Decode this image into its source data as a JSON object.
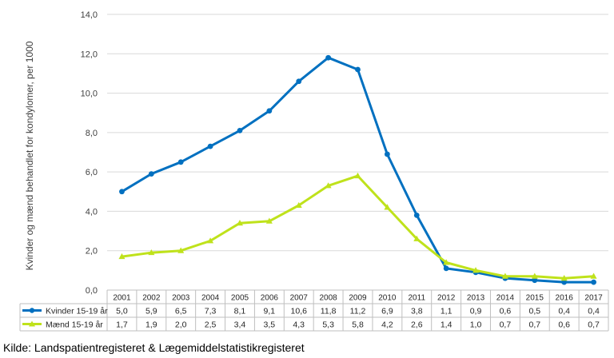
{
  "chart_data": {
    "type": "line",
    "title": "",
    "xlabel": "",
    "ylabel": "Kvinder og mænd behandlet for kondylomer, per 1000",
    "ylim": [
      0,
      14
    ],
    "yticks": [
      "0,0",
      "2,0",
      "4,0",
      "6,0",
      "8,0",
      "10,0",
      "12,0",
      "14,0"
    ],
    "grid": true,
    "legend": "data table below chart",
    "categories": [
      "2001",
      "2002",
      "2003",
      "2004",
      "2005",
      "2006",
      "2007",
      "2008",
      "2009",
      "2010",
      "2011",
      "2012",
      "2013",
      "2014",
      "2015",
      "2016",
      "2017"
    ],
    "series": [
      {
        "name": "Kvinder 15-19 år",
        "color": "#0070C0",
        "marker": "circle",
        "values": [
          5.0,
          5.9,
          6.5,
          7.3,
          8.1,
          9.1,
          10.6,
          11.8,
          11.2,
          6.9,
          3.8,
          1.1,
          0.9,
          0.6,
          0.5,
          0.4,
          0.4
        ],
        "labels": [
          "5,0",
          "5,9",
          "6,5",
          "7,3",
          "8,1",
          "9,1",
          "10,6",
          "11,8",
          "11,2",
          "6,9",
          "3,8",
          "1,1",
          "0,9",
          "0,6",
          "0,5",
          "0,4",
          "0,4"
        ]
      },
      {
        "name": "Mænd 15-19 år",
        "color": "#BFE21B",
        "marker": "triangle",
        "values": [
          1.7,
          1.9,
          2.0,
          2.5,
          3.4,
          3.5,
          4.3,
          5.3,
          5.8,
          4.2,
          2.6,
          1.4,
          1.0,
          0.7,
          0.7,
          0.6,
          0.7
        ],
        "labels": [
          "1,7",
          "1,9",
          "2,0",
          "2,5",
          "3,4",
          "3,5",
          "4,3",
          "5,3",
          "5,8",
          "4,2",
          "2,6",
          "1,4",
          "1,0",
          "0,7",
          "0,7",
          "0,6",
          "0,7"
        ]
      }
    ]
  },
  "source": "Kilde: Landspatientregisteret & Lægemiddelstatistikregisteret"
}
